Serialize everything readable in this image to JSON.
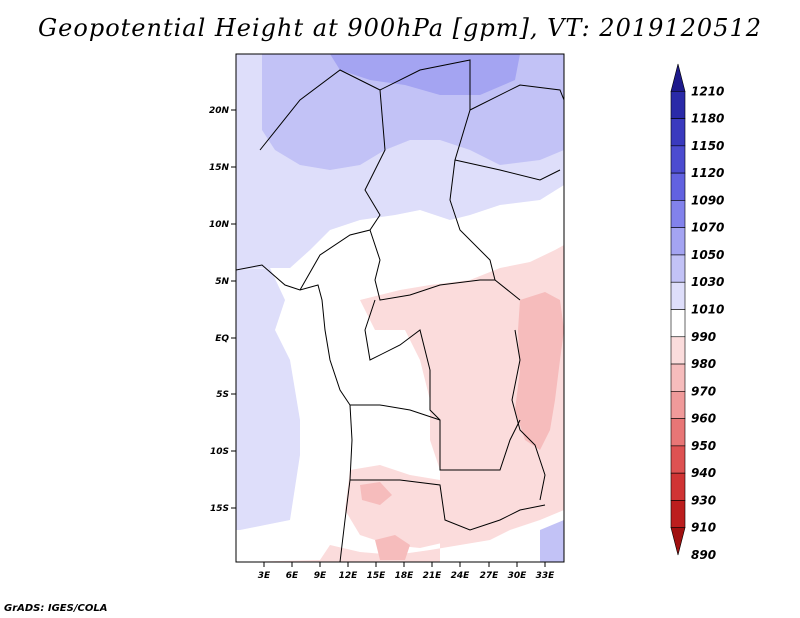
{
  "title": "Geopotential Height at 900hPa [gpm], VT: 2019120512",
  "credit": "GrADS: IGES/COLA",
  "lat_labels": [
    "20N",
    "15N",
    "10N",
    "5N",
    "EQ",
    "5S",
    "10S",
    "15S"
  ],
  "lon_labels": [
    "3E",
    "6E",
    "9E",
    "12E",
    "15E",
    "18E",
    "21E",
    "24E",
    "27E",
    "30E",
    "33E"
  ],
  "colorbar": {
    "levels": [
      "1210",
      "1180",
      "1150",
      "1120",
      "1090",
      "1070",
      "1050",
      "1030",
      "1010",
      "990",
      "980",
      "970",
      "960",
      "950",
      "940",
      "930",
      "910",
      "890"
    ],
    "colors": [
      "#1e1a8c",
      "#2a2aa8",
      "#3a3abe",
      "#4c4cd0",
      "#6262e0",
      "#8282ec",
      "#a4a4f2",
      "#c2c2f6",
      "#dedefa",
      "#ffffff",
      "#fbdcdc",
      "#f6bcbc",
      "#f09a9a",
      "#e87676",
      "#de5252",
      "#d03434",
      "#bc1e1e",
      "#a01010"
    ]
  }
}
